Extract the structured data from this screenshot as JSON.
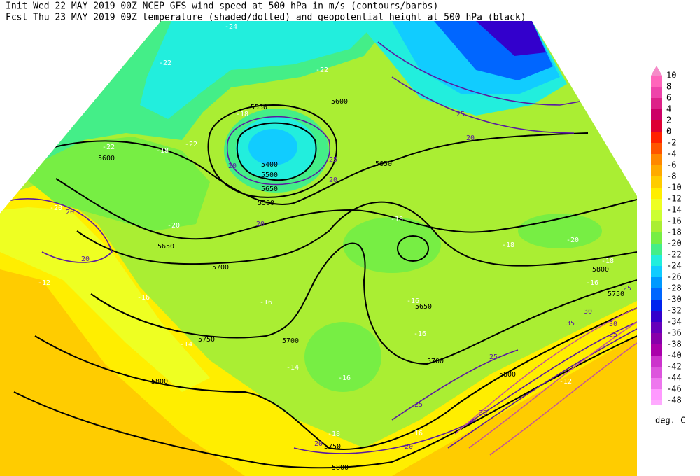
{
  "header": {
    "line1": "Init  Wed 22 MAY 2019 00Z  NCEP GFS wind speed at 500 hPa in m/s (contours/barbs)",
    "line2": "Fcst Thu 23 MAY 2019 09Z  temperature (shaded/dotted) and geopotential height at 500 hPa (black)"
  },
  "colorbar": {
    "labels": [
      10,
      8,
      6,
      4,
      2,
      0,
      -2,
      -4,
      -6,
      -8,
      -10,
      -12,
      -14,
      -16,
      -18,
      -20,
      -22,
      -24,
      -26,
      -28,
      -30,
      -32,
      -34,
      -36,
      -38,
      -40,
      -42,
      -44,
      -46,
      -48
    ],
    "colors": [
      "#f58cc8",
      "#ff66bb",
      "#ee44aa",
      "#dd2288",
      "#cc0066",
      "#dd0033",
      "#ff2200",
      "#ff5500",
      "#ff8800",
      "#ffaa00",
      "#ffcc00",
      "#ffee00",
      "#eeff22",
      "#ccff33",
      "#aaee33",
      "#77ee44",
      "#44ee88",
      "#22eedd",
      "#11ccff",
      "#0099ff",
      "#0066ff",
      "#0022ee",
      "#3300cc",
      "#6600bb",
      "#8800aa",
      "#aa00aa",
      "#cc33cc",
      "#dd55dd",
      "#ee77ee",
      "#ff99ff",
      "#ffaaff"
    ],
    "unit": "deg. C"
  },
  "map": {
    "height_labels": [
      5550,
      5600,
      5600,
      5400,
      5500,
      5650,
      5500,
      5650,
      5650,
      5700,
      5750,
      5700,
      5650,
      5800,
      5700,
      5750,
      5800,
      5800,
      5750,
      5800
    ],
    "wind_labels": [
      20,
      25,
      20,
      20,
      20,
      20,
      20,
      25,
      25,
      30,
      35,
      30,
      25,
      25,
      25,
      20,
      20,
      30
    ],
    "temp_labels": [
      -24,
      -22,
      -22,
      -18,
      -22,
      -22,
      -18,
      -20,
      -20,
      -18,
      -18,
      -20,
      -18,
      -16,
      -16,
      -16,
      -14,
      -14,
      -16,
      -12,
      -16,
      -12,
      -16,
      -18,
      -16
    ]
  }
}
